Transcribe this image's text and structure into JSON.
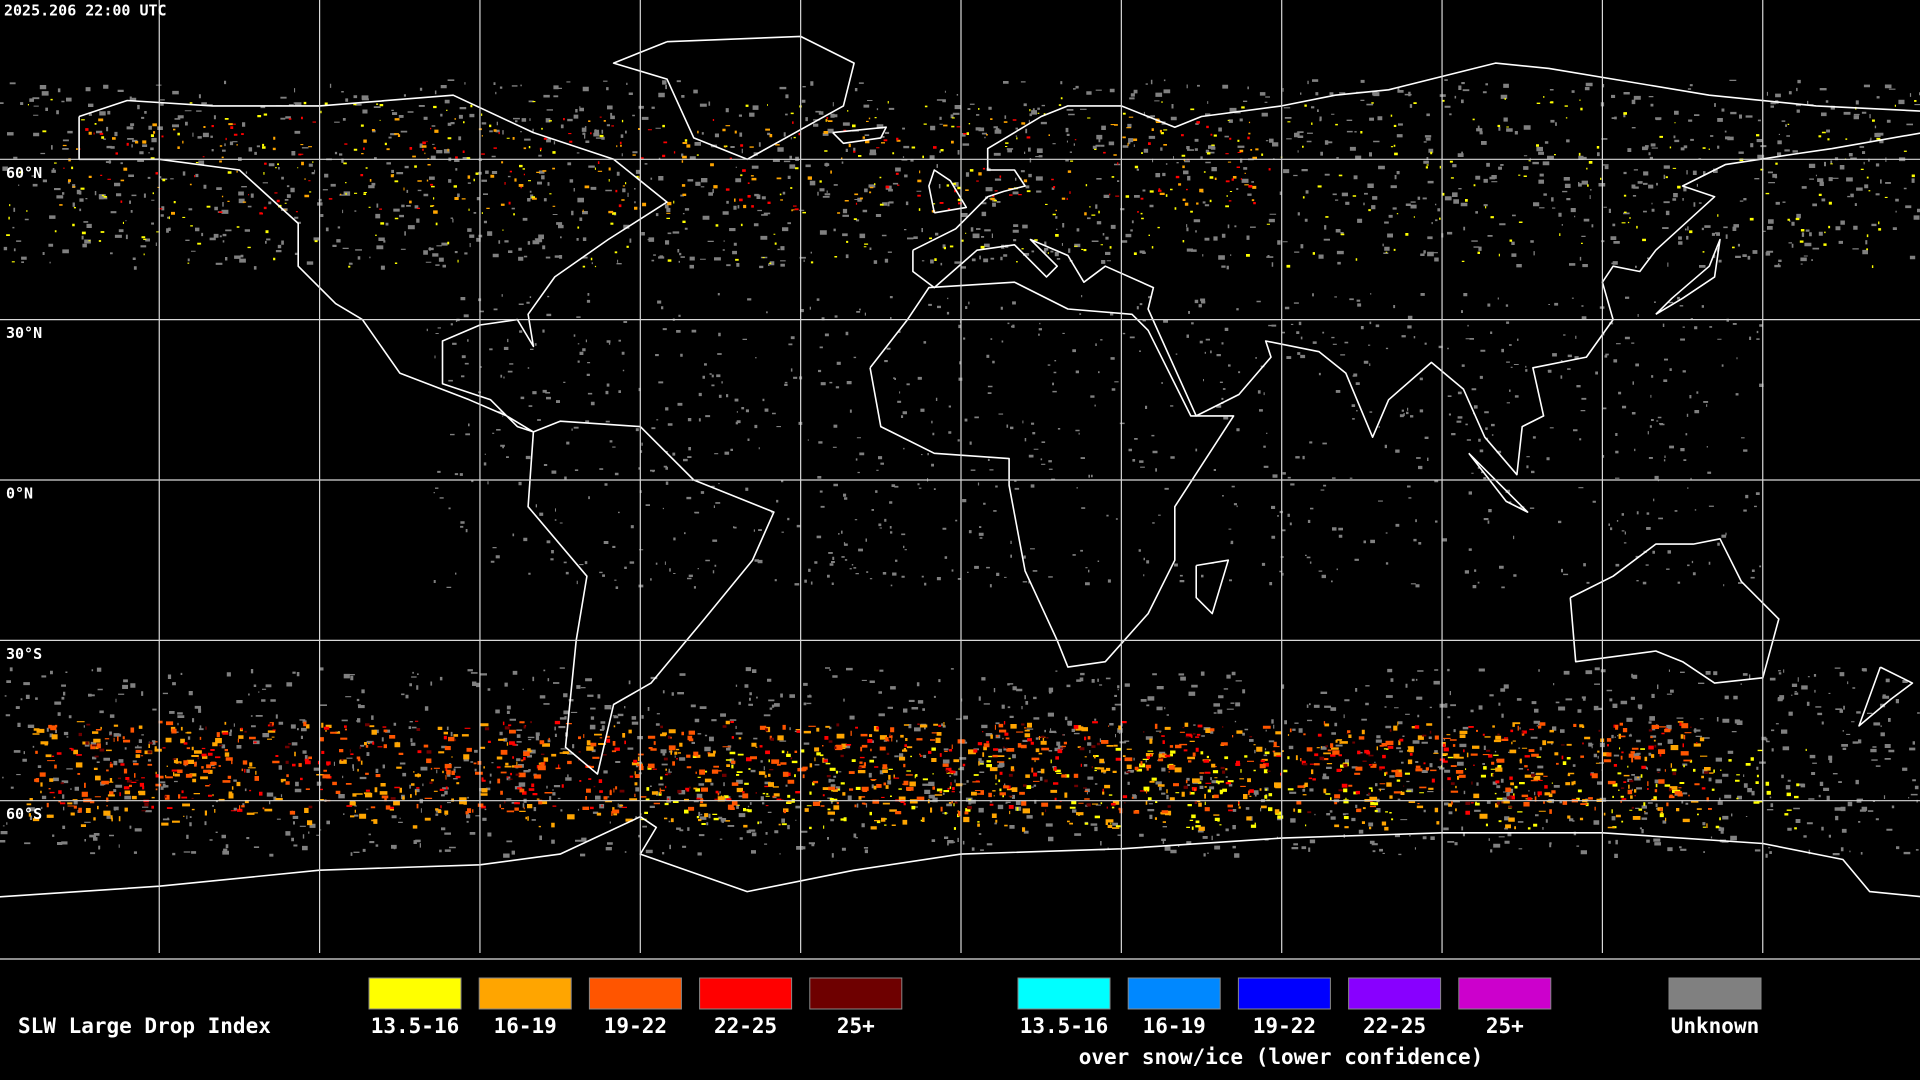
{
  "map": {
    "timestamp": "2025.206 22:00 UTC",
    "lat_labels": [
      "60°N",
      "30°N",
      "0°N",
      "30°S",
      "60°S"
    ]
  },
  "legend": {
    "title": "SLW Large Drop Index",
    "groups": [
      {
        "items": [
          {
            "label": "13.5-16",
            "color": "#ffff00"
          },
          {
            "label": "16-19",
            "color": "#ffa500"
          },
          {
            "label": "19-22",
            "color": "#ff5500"
          },
          {
            "label": "22-25",
            "color": "#ff0000"
          },
          {
            "label": "25+",
            "color": "#6e0000"
          }
        ]
      },
      {
        "items": [
          {
            "label": "13.5-16",
            "color": "#00ffff"
          },
          {
            "label": "16-19",
            "color": "#0088ff"
          },
          {
            "label": "19-22",
            "color": "#0000ff"
          },
          {
            "label": "22-25",
            "color": "#8800ff"
          },
          {
            "label": "25+",
            "color": "#cc00cc"
          }
        ]
      }
    ],
    "snow_note": "over snow/ice (lower confidence)",
    "unknown": {
      "label": "Unknown",
      "color": "#808080"
    }
  }
}
